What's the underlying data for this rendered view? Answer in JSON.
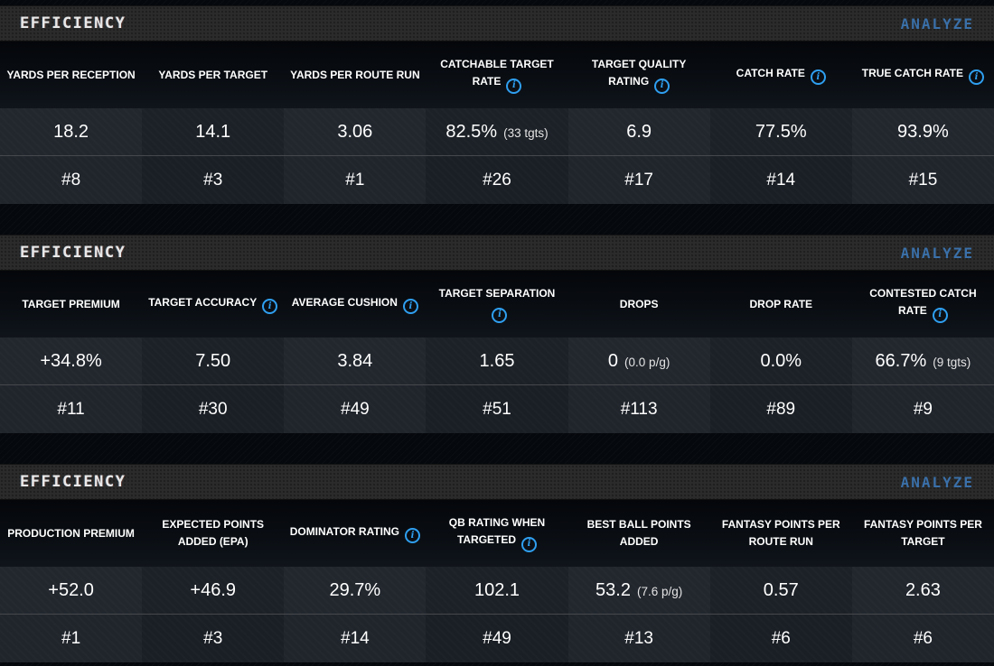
{
  "colors": {
    "analyze_blue": "#3a70a9",
    "info_icon_blue": "#2f9ff0",
    "header_bar_bg": "#2b2b2b",
    "cell_bg_light": "#22272e",
    "cell_bg_dark": "#1c2127",
    "page_bg": "#05080c"
  },
  "icons": {
    "info_glyph": "i"
  },
  "panels": [
    {
      "title": "EFFICIENCY",
      "action_label": "ANALYZE",
      "columns": [
        {
          "label": "YARDS PER RECEPTION",
          "has_info": false,
          "value": "18.2",
          "sub": "",
          "rank": "#8"
        },
        {
          "label": "YARDS PER TARGET",
          "has_info": false,
          "value": "14.1",
          "sub": "",
          "rank": "#3"
        },
        {
          "label": "YARDS PER ROUTE RUN",
          "has_info": false,
          "value": "3.06",
          "sub": "",
          "rank": "#1"
        },
        {
          "label": "CATCHABLE TARGET RATE",
          "has_info": true,
          "value": "82.5%",
          "sub": "(33 tgts)",
          "rank": "#26"
        },
        {
          "label": "TARGET QUALITY RATING",
          "has_info": true,
          "value": "6.9",
          "sub": "",
          "rank": "#17"
        },
        {
          "label": "CATCH RATE",
          "has_info": true,
          "value": "77.5%",
          "sub": "",
          "rank": "#14"
        },
        {
          "label": "TRUE CATCH RATE",
          "has_info": true,
          "value": "93.9%",
          "sub": "",
          "rank": "#15"
        }
      ]
    },
    {
      "title": "EFFICIENCY",
      "action_label": "ANALYZE",
      "columns": [
        {
          "label": "TARGET PREMIUM",
          "has_info": false,
          "value": "+34.8%",
          "sub": "",
          "rank": "#11"
        },
        {
          "label": "TARGET ACCURACY",
          "has_info": true,
          "value": "7.50",
          "sub": "",
          "rank": "#30"
        },
        {
          "label": "AVERAGE CUSHION",
          "has_info": true,
          "value": "3.84",
          "sub": "",
          "rank": "#49"
        },
        {
          "label": "TARGET SEPARATION",
          "has_info": true,
          "value": "1.65",
          "sub": "",
          "rank": "#51"
        },
        {
          "label": "DROPS",
          "has_info": false,
          "value": "0",
          "sub": "(0.0 p/g)",
          "rank": "#113"
        },
        {
          "label": "DROP RATE",
          "has_info": false,
          "value": "0.0%",
          "sub": "",
          "rank": "#89"
        },
        {
          "label": "CONTESTED CATCH RATE",
          "has_info": true,
          "value": "66.7%",
          "sub": "(9 tgts)",
          "rank": "#9"
        }
      ]
    },
    {
      "title": "EFFICIENCY",
      "action_label": "ANALYZE",
      "columns": [
        {
          "label": "PRODUCTION PREMIUM",
          "has_info": false,
          "value": "+52.0",
          "sub": "",
          "rank": "#1"
        },
        {
          "label": "EXPECTED POINTS ADDED (EPA)",
          "has_info": false,
          "value": "+46.9",
          "sub": "",
          "rank": "#3"
        },
        {
          "label": "DOMINATOR RATING",
          "has_info": true,
          "value": "29.7%",
          "sub": "",
          "rank": "#14"
        },
        {
          "label": "QB RATING WHEN TARGETED",
          "has_info": true,
          "value": "102.1",
          "sub": "",
          "rank": "#49"
        },
        {
          "label": "BEST BALL POINTS ADDED",
          "has_info": false,
          "value": "53.2",
          "sub": "(7.6 p/g)",
          "rank": "#13"
        },
        {
          "label": "FANTASY POINTS PER ROUTE RUN",
          "has_info": false,
          "value": "0.57",
          "sub": "",
          "rank": "#6"
        },
        {
          "label": "FANTASY POINTS PER TARGET",
          "has_info": false,
          "value": "2.63",
          "sub": "",
          "rank": "#6"
        }
      ]
    }
  ]
}
